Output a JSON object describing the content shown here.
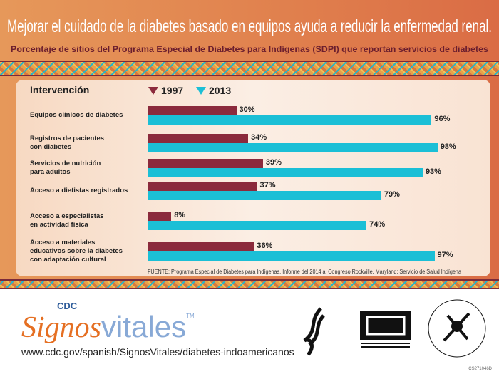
{
  "header": {
    "title": "Mejorar el cuidado de la diabetes basado en equipos ayuda a reducir la enfermedad renal.",
    "subtitle": "Porcentaje de sitios del Programa Especial de Diabetes para Indígenas (SDPI) que reportan servicios de diabetes"
  },
  "chart_data": {
    "type": "bar",
    "orientation": "horizontal",
    "category_header": "Intervención",
    "categories": [
      "Equipos clínicos de diabetes",
      "Registros de pacientes\ncon diabetes",
      "Servicios de nutrición\npara adultos",
      "Acceso a dietistas registrados",
      "Acceso a especialistas\nen actividad física",
      "Acceso a materiales\neducativos sobre la diabetes\ncon adaptación cultural"
    ],
    "series": [
      {
        "name": "1997",
        "color": "#8b2a3c",
        "values": [
          30,
          34,
          39,
          37,
          8,
          36
        ],
        "labels": [
          "30%",
          "34%",
          "39%",
          "37%",
          "8%",
          "36%"
        ]
      },
      {
        "name": "2013",
        "color": "#1bbfd6",
        "values": [
          96,
          98,
          93,
          79,
          74,
          97
        ],
        "labels": [
          "96%",
          "98%",
          "93%",
          "79%",
          "74%",
          "97%"
        ]
      }
    ],
    "unit": "%",
    "legend": "top",
    "grid": false,
    "source": "FUENTE: Programa Especial de Diabetes para Indígenas, Informe del 2014 al Congreso Rockville, Maryland: Servicio de Salud Indígena"
  },
  "footer": {
    "logo_cdc": "CDC",
    "logo_signos": "Signos",
    "logo_vitales": "vitales",
    "logo_tm": "TM",
    "url": "www.cdc.gov/spanish/SignosVitales/diabetes-indoamericanos",
    "hhs_seal": "DEPARTMENT OF HEALTH & HUMAN SERVICES USA",
    "cdc_logo": "CDC CENTERS FOR DISEASE CONTROL AND PREVENTION",
    "ihs_seal": "INDIAN HEALTH SERVICE · PHS · 1955",
    "code": "CS271046D"
  }
}
